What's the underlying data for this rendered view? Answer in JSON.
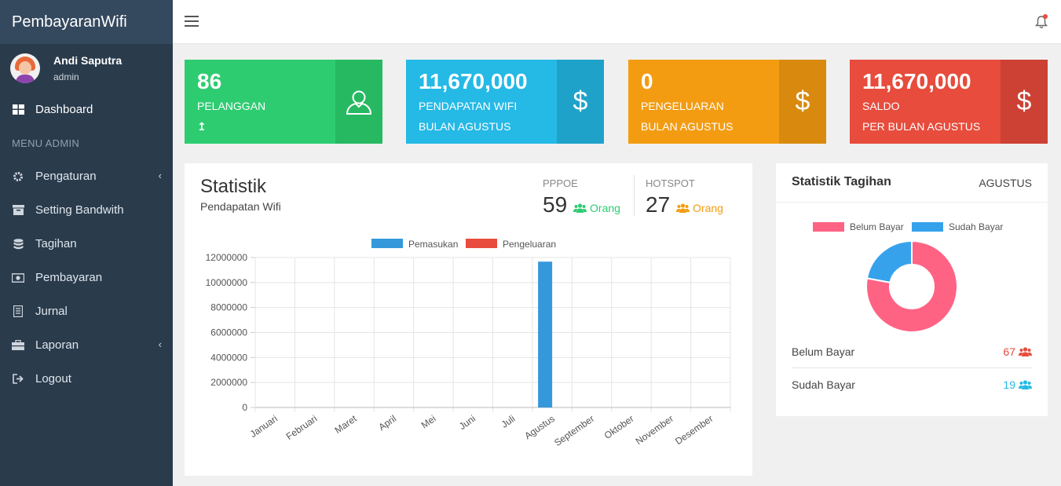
{
  "brand": "PembayaranWifi",
  "user": {
    "name": "Andi Saputra",
    "role": "admin"
  },
  "menu": {
    "dashboard": "Dashboard",
    "header": "MENU ADMIN",
    "items": [
      {
        "label": "Pengaturan",
        "icon": "gear-icon",
        "submenu": true
      },
      {
        "label": "Setting Bandwith",
        "icon": "archive-icon",
        "submenu": false
      },
      {
        "label": "Tagihan",
        "icon": "database-icon",
        "submenu": false
      },
      {
        "label": "Pembayaran",
        "icon": "money-icon",
        "submenu": false
      },
      {
        "label": "Jurnal",
        "icon": "receipt-icon",
        "submenu": false
      },
      {
        "label": "Laporan",
        "icon": "briefcase-icon",
        "submenu": true
      },
      {
        "label": "Logout",
        "icon": "logout-icon",
        "submenu": false
      }
    ]
  },
  "cards": [
    {
      "value": "86",
      "line1": "PELANGGAN",
      "line2": "↥",
      "icon": "user-icon",
      "color": "#2ecc71"
    },
    {
      "value": "11,670,000",
      "line1": "PENDAPATAN WIFI",
      "line2": "BULAN AGUSTUS",
      "icon": "dollar-icon",
      "color": "#25b9e6"
    },
    {
      "value": "0",
      "line1": "PENGELUARAN",
      "line2": "BULAN AGUSTUS",
      "icon": "dollar-icon",
      "color": "#f39c12"
    },
    {
      "value": "11,670,000",
      "line1": "SALDO",
      "line2": "PER BULAN AGUSTUS",
      "icon": "dollar-icon",
      "color": "#e74c3c"
    }
  ],
  "statistik": {
    "title": "Statistik",
    "subtitle": "Pendapatan Wifi",
    "pppoe": {
      "label": "PPPOE",
      "value": "59",
      "unit": "Orang",
      "color": "#2ecc71"
    },
    "hotspot": {
      "label": "HOTSPOT",
      "value": "27",
      "unit": "Orang",
      "color": "#f39c12"
    }
  },
  "tagihan": {
    "title": "Statistik Tagihan",
    "month": "AGUSTUS",
    "rows": [
      {
        "label": "Belum Bayar",
        "count": "67",
        "color": "#e74c3c"
      },
      {
        "label": "Sudah Bayar",
        "count": "19",
        "color": "#25b9e6"
      }
    ]
  },
  "chart_data": [
    {
      "type": "bar",
      "categories": [
        "Januari",
        "Februari",
        "Maret",
        "April",
        "Mei",
        "Juni",
        "Juli",
        "Agustus",
        "September",
        "Oktober",
        "November",
        "Desember"
      ],
      "series": [
        {
          "name": "Pemasukan",
          "color": "#3498db",
          "values": [
            0,
            0,
            0,
            0,
            0,
            0,
            0,
            11670000,
            0,
            0,
            0,
            0
          ]
        },
        {
          "name": "Pengeluaran",
          "color": "#e74c3c",
          "values": [
            0,
            0,
            0,
            0,
            0,
            0,
            0,
            0,
            0,
            0,
            0,
            0
          ]
        }
      ],
      "yticks": [
        0,
        2000000,
        4000000,
        6000000,
        8000000,
        10000000,
        12000000
      ],
      "ylim": [
        0,
        12000000
      ],
      "legend": "top",
      "grid": true
    },
    {
      "type": "pie",
      "donut": true,
      "labels": [
        "Belum Bayar",
        "Sudah Bayar"
      ],
      "values": [
        67,
        19
      ],
      "colors": [
        "#ff6384",
        "#36a2eb"
      ],
      "legend": "top"
    }
  ]
}
